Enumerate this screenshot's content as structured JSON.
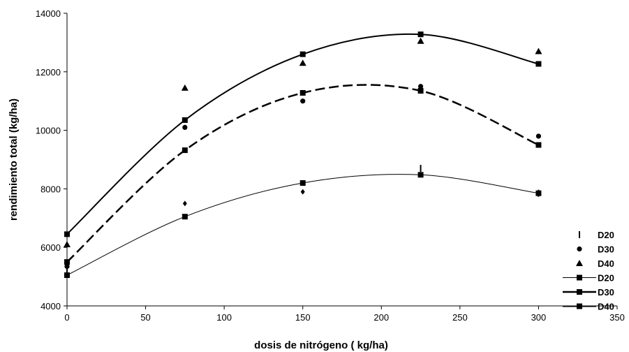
{
  "chart_data": {
    "type": "scatter",
    "title": "",
    "xlabel": "dosis de nitrógeno ( kg/ha)",
    "ylabel": "rendimiento total (kg/ha)",
    "xlim": [
      0,
      350
    ],
    "ylim": [
      4000,
      14000
    ],
    "xticks": [
      "0",
      "50",
      "100",
      "150",
      "200",
      "250",
      "300",
      "350"
    ],
    "yticks": [
      "4000",
      "6000",
      "8000",
      "10000",
      "12000",
      "14000"
    ],
    "grid": false,
    "legend_position": "right",
    "observed": [
      {
        "name": "D20",
        "marker": "dash",
        "x": [
          0,
          75,
          150,
          225,
          300
        ],
        "y": [
          5150,
          7500,
          7900,
          8700,
          7850
        ]
      },
      {
        "name": "D30",
        "marker": "circle",
        "x": [
          0,
          75,
          150,
          225,
          300
        ],
        "y": [
          5350,
          10100,
          11000,
          11500,
          9800
        ]
      },
      {
        "name": "D40",
        "marker": "triangle",
        "x": [
          0,
          75,
          150,
          225,
          300
        ],
        "y": [
          6100,
          11450,
          12300,
          13050,
          12700
        ]
      }
    ],
    "fitted": [
      {
        "name": "D20",
        "style": "thin",
        "x": [
          0,
          75,
          150,
          225,
          300
        ],
        "y": [
          5050,
          7050,
          8200,
          8480,
          7850
        ]
      },
      {
        "name": "D30",
        "style": "dashed",
        "x": [
          0,
          75,
          150,
          225,
          300
        ],
        "y": [
          5500,
          9320,
          11280,
          11350,
          9500
        ]
      },
      {
        "name": "D40",
        "style": "thick",
        "x": [
          0,
          75,
          150,
          225,
          300
        ],
        "y": [
          6450,
          10350,
          12600,
          13280,
          12270
        ]
      }
    ]
  }
}
